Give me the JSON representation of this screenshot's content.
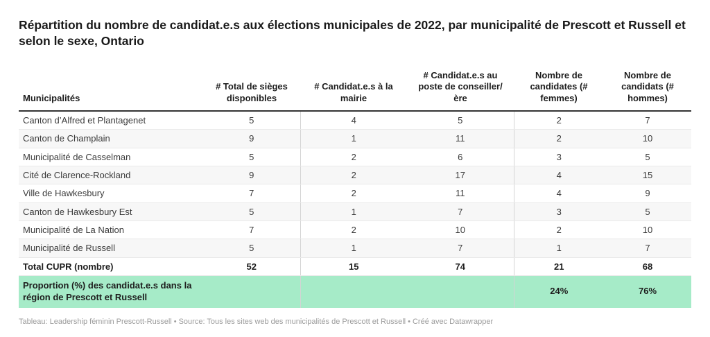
{
  "chart_data": {
    "type": "table",
    "title": "Répartition du nombre de candidat.e.s aux élections municipales de 2022, par municipalité de Prescott et Russell et selon le sexe, Ontario",
    "columns": [
      "Municipalités",
      "# Total de sièges disponibles",
      "# Candidat.e.s à la mairie",
      "# Candidat.e.s au poste de conseiller/ère",
      "Nombre de candidates (# femmes)",
      "Nombre de candidats (# hommes)"
    ],
    "rows": [
      {
        "municipality": "Canton d’Alfred et Plantagenet",
        "sieges": 5,
        "mairie": 4,
        "conseiller": 5,
        "femmes": 2,
        "hommes": 7
      },
      {
        "municipality": "Canton de Champlain",
        "sieges": 9,
        "mairie": 1,
        "conseiller": 11,
        "femmes": 2,
        "hommes": 10
      },
      {
        "municipality": "Municipalité de Casselman",
        "sieges": 5,
        "mairie": 2,
        "conseiller": 6,
        "femmes": 3,
        "hommes": 5
      },
      {
        "municipality": "Cité de Clarence-Rockland",
        "sieges": 9,
        "mairie": 2,
        "conseiller": 17,
        "femmes": 4,
        "hommes": 15
      },
      {
        "municipality": "Ville de Hawkesbury",
        "sieges": 7,
        "mairie": 2,
        "conseiller": 11,
        "femmes": 4,
        "hommes": 9
      },
      {
        "municipality": "Canton de Hawkesbury Est",
        "sieges": 5,
        "mairie": 1,
        "conseiller": 7,
        "femmes": 3,
        "hommes": 5
      },
      {
        "municipality": "Municipalité de La Nation",
        "sieges": 7,
        "mairie": 2,
        "conseiller": 10,
        "femmes": 2,
        "hommes": 10
      },
      {
        "municipality": "Municipalité de Russell",
        "sieges": 5,
        "mairie": 1,
        "conseiller": 7,
        "femmes": 1,
        "hommes": 7
      }
    ],
    "total_row": {
      "label": "Total CUPR (nombre)",
      "sieges": 52,
      "mairie": 15,
      "conseiller": 74,
      "femmes": 21,
      "hommes": 68
    },
    "proportion_row": {
      "label": "Proportion (%) des candidat.e.s dans la région de Prescott et Russell",
      "sieges": "",
      "mairie": "",
      "conseiller": "",
      "femmes": "24%",
      "hommes": "76%"
    },
    "legend_position": "none",
    "grid": "horizontal-row-borders"
  },
  "footer": {
    "table_credit": "Tableau: Leadership féminin Prescott-Russell",
    "separator": "•",
    "source_credit": "Source: Tous les sites web des municipalités de Prescott et Russell",
    "tool_credit": "Créé avec Datawrapper"
  },
  "colors": {
    "highlight_row_bg": "#a6ebc8",
    "stripe_row_bg": "#f7f7f7",
    "header_rule": "#333333",
    "row_rule": "#e9e9e9",
    "column_divider": "#d4d4d4",
    "title_text": "#1a1a1a",
    "body_text": "#3a3a3a",
    "footer_text": "#9b9b9b"
  }
}
